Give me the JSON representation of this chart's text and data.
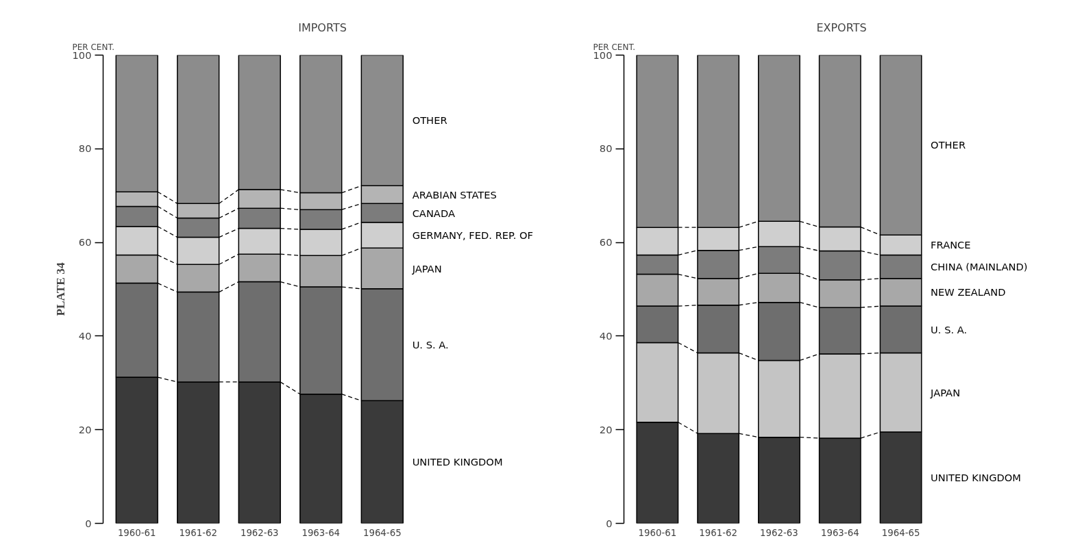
{
  "chart_data": [
    {
      "type": "bar",
      "stacked": true,
      "title": "IMPORTS",
      "ylabel": "PER CENT.",
      "categories": [
        "1960-61",
        "1961-62",
        "1962-63",
        "1963-64",
        "1964-65"
      ],
      "ylim": [
        0,
        100
      ],
      "yticks": [
        0,
        20,
        40,
        60,
        80,
        100
      ],
      "grid": false,
      "annotations": [
        "PLATE 34"
      ],
      "series": [
        {
          "name": "UNITED KINGDOM",
          "color": "#3a3a3a",
          "values": [
            31.2,
            30.2,
            30.2,
            27.6,
            26.2
          ]
        },
        {
          "name": "U. S. A.",
          "color": "#6e6e6e",
          "values": [
            20.1,
            19.2,
            21.4,
            22.9,
            23.9
          ]
        },
        {
          "name": "JAPAN",
          "color": "#a8a8a8",
          "values": [
            6.0,
            5.9,
            5.9,
            6.7,
            8.7
          ]
        },
        {
          "name": "GERMANY, FED. REP. OF",
          "color": "#cfcfcf",
          "values": [
            6.1,
            5.8,
            5.5,
            5.6,
            5.5
          ]
        },
        {
          "name": "CANADA",
          "color": "#7c7c7c",
          "values": [
            4.3,
            4.1,
            4.3,
            4.2,
            4.0
          ]
        },
        {
          "name": "ARABIAN STATES",
          "color": "#b4b4b4",
          "values": [
            3.1,
            3.1,
            4.0,
            3.6,
            3.8
          ]
        },
        {
          "name": "OTHER",
          "color": "#8c8c8c",
          "values": [
            29.2,
            31.7,
            28.7,
            29.4,
            27.9
          ]
        }
      ]
    },
    {
      "type": "bar",
      "stacked": true,
      "title": "EXPORTS",
      "ylabel": "PER CENT.",
      "categories": [
        "1960-61",
        "1961-62",
        "1962-63",
        "1963-64",
        "1964-65"
      ],
      "ylim": [
        0,
        100
      ],
      "yticks": [
        0,
        20,
        40,
        60,
        80,
        100
      ],
      "grid": false,
      "series": [
        {
          "name": "UNITED KINGDOM",
          "color": "#3a3a3a",
          "values": [
            21.6,
            19.2,
            18.4,
            18.2,
            19.5
          ]
        },
        {
          "name": "JAPAN",
          "color": "#c4c4c4",
          "values": [
            17.0,
            17.2,
            16.4,
            18.0,
            16.9
          ]
        },
        {
          "name": "U. S. A.",
          "color": "#6e6e6e",
          "values": [
            7.8,
            10.2,
            12.4,
            9.9,
            10.0
          ]
        },
        {
          "name": "NEW ZEALAND",
          "color": "#a8a8a8",
          "values": [
            6.8,
            5.7,
            6.2,
            5.9,
            5.9
          ]
        },
        {
          "name": "CHINA (MAINLAND)",
          "color": "#7c7c7c",
          "values": [
            4.1,
            6.0,
            5.7,
            6.2,
            5.0
          ]
        },
        {
          "name": "FRANCE",
          "color": "#cfcfcf",
          "values": [
            5.9,
            4.9,
            5.4,
            5.1,
            4.3
          ]
        },
        {
          "name": "OTHER",
          "color": "#8c8c8c",
          "values": [
            36.8,
            36.8,
            35.5,
            36.7,
            38.4
          ]
        }
      ]
    }
  ]
}
